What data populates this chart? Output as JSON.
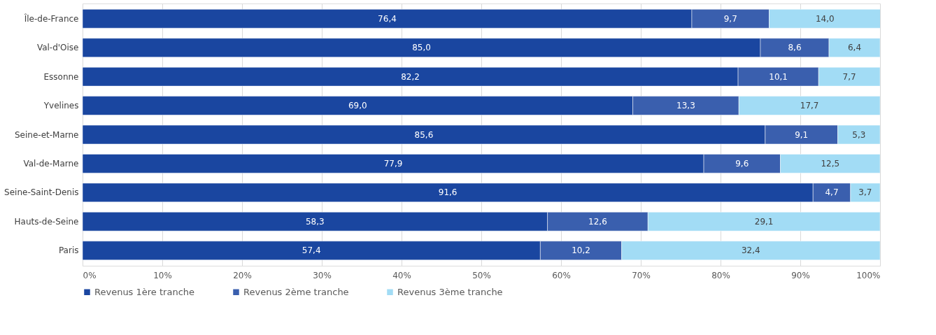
{
  "chart_data": {
    "type": "bar",
    "orientation": "horizontal",
    "stacked": true,
    "categories": [
      "Île-de-France",
      "Val-d'Oise",
      "Essonne",
      "Yvelines",
      "Seine-et-Marne",
      "Val-de-Marne",
      "Seine-Saint-Denis",
      "Hauts-de-Seine",
      "Paris"
    ],
    "series": [
      {
        "name": "Revenus 1ère tranche",
        "color": "#1a46a0",
        "values": [
          76.4,
          85.0,
          82.2,
          69.0,
          85.6,
          77.9,
          91.6,
          58.3,
          57.4
        ],
        "value_labels": [
          "76,4",
          "85,0",
          "82,2",
          "69,0",
          "85,6",
          "77,9",
          "91,6",
          "58,3",
          "57,4"
        ]
      },
      {
        "name": "Revenus 2ème tranche",
        "color": "#3a5fae",
        "values": [
          9.7,
          8.6,
          10.1,
          13.3,
          9.1,
          9.6,
          4.7,
          12.6,
          10.2
        ],
        "value_labels": [
          "9,7",
          "8,6",
          "10,1",
          "13,3",
          "9,1",
          "9,6",
          "4,7",
          "12,6",
          "10,2"
        ]
      },
      {
        "name": "Revenus 3ème tranche",
        "color": "#a2dcf5",
        "values": [
          14.0,
          6.4,
          7.7,
          17.7,
          5.3,
          12.5,
          3.7,
          29.1,
          32.4
        ],
        "value_labels": [
          "14,0",
          "6,4",
          "7,7",
          "17,7",
          "5,3",
          "12,5",
          "3,7",
          "29,1",
          "32,4"
        ]
      }
    ],
    "xlim": [
      0,
      100
    ],
    "xticks": [
      {
        "value": 0,
        "label": "0%"
      },
      {
        "value": 10,
        "label": "10%"
      },
      {
        "value": 20,
        "label": "20%"
      },
      {
        "value": 30,
        "label": "30%"
      },
      {
        "value": 40,
        "label": "40%"
      },
      {
        "value": 50,
        "label": "50%"
      },
      {
        "value": 60,
        "label": "60%"
      },
      {
        "value": 70,
        "label": "70%"
      },
      {
        "value": 80,
        "label": "80%"
      },
      {
        "value": 90,
        "label": "90%"
      },
      {
        "value": 100,
        "label": "100%"
      }
    ],
    "grid": "x",
    "legend": "bottom"
  }
}
